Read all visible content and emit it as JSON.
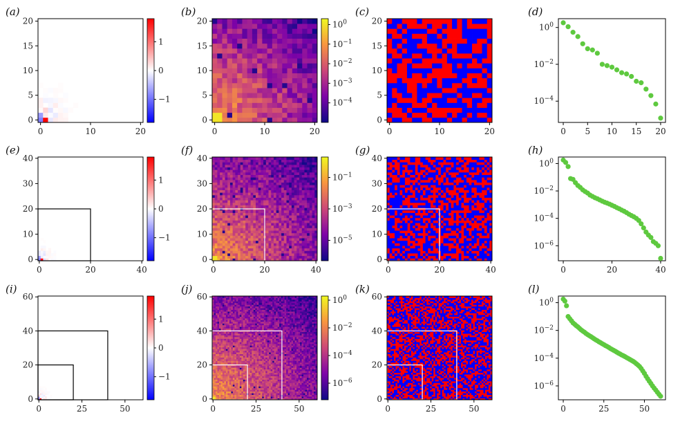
{
  "colors": {
    "matrix_bwr_neg": "#0000ff",
    "matrix_bwr_pos": "#ff0000",
    "sign_neg": "#0000ff",
    "sign_pos": "#ff0000",
    "spectrum_point": "#5ec93f",
    "plasma_low": "#0d0887",
    "plasma_high": "#f0f921"
  },
  "chart_data": [
    {
      "type": "heatmap",
      "panel": "(a)",
      "colormap": "bwr",
      "size": 21,
      "xlim": [
        0,
        21
      ],
      "ylim": [
        0,
        21
      ],
      "xticks": [
        0,
        10,
        20
      ],
      "yticks": [
        0,
        5,
        10,
        15,
        20
      ],
      "xtick_labels": [
        "0",
        "10",
        "20"
      ],
      "ytick_labels": [
        "0",
        "5",
        "10",
        "15",
        "20"
      ],
      "colorbar": {
        "range": [
          -1.8,
          1.8
        ],
        "ticks": [
          1,
          0,
          -1
        ],
        "labels": [
          "1",
          "0",
          "−1"
        ]
      },
      "outlines": []
    },
    {
      "type": "heatmap",
      "panel": "(b)",
      "colormap": "plasma",
      "scale": "log",
      "size": 21,
      "xlim": [
        0,
        21
      ],
      "ylim": [
        0,
        21
      ],
      "xticks": [
        0,
        10,
        20
      ],
      "yticks": [
        0,
        5,
        10,
        15,
        20
      ],
      "xtick_labels": [
        "0",
        "10",
        "20"
      ],
      "ytick_labels": [
        "0",
        "5",
        "10",
        "15",
        "20"
      ],
      "colorbar": {
        "range": [
          -5,
          0.3
        ],
        "ticks": [
          0,
          -1,
          -2,
          -3,
          -4
        ],
        "labels": [
          "10^0",
          "10^-1",
          "10^-2",
          "10^-3",
          "10^-4"
        ]
      },
      "outlines": []
    },
    {
      "type": "heatmap",
      "panel": "(c)",
      "colormap": "sign",
      "size": 21,
      "xlim": [
        0,
        21
      ],
      "ylim": [
        0,
        21
      ],
      "xticks": [
        0,
        10,
        20
      ],
      "yticks": [
        0,
        5,
        10,
        15,
        20
      ],
      "xtick_labels": [
        "0",
        "10",
        "20"
      ],
      "ytick_labels": [
        "0",
        "5",
        "10",
        "15",
        "20"
      ],
      "outlines": []
    },
    {
      "type": "scatter",
      "panel": "(d)",
      "yscale": "log",
      "x": [
        0,
        1,
        2,
        3,
        4,
        5,
        6,
        7,
        8,
        9,
        10,
        11,
        12,
        13,
        14,
        15,
        16,
        17,
        18,
        19,
        20
      ],
      "y": [
        1.8,
        1.1,
        0.55,
        0.32,
        0.13,
        0.07,
        0.06,
        0.04,
        0.01,
        0.0085,
        0.007,
        0.005,
        0.0035,
        0.003,
        0.0022,
        0.0012,
        0.001,
        0.00045,
        0.0002,
        7e-05,
        1.2e-05
      ],
      "xlim": [
        -1,
        21
      ],
      "ylim": [
        7e-06,
        3
      ],
      "xticks": [
        0,
        5,
        10,
        15,
        20
      ],
      "xtick_labels": [
        "0",
        "5",
        "10",
        "15",
        "20"
      ],
      "yticks": [
        0,
        -2,
        -4
      ],
      "ytick_labels": [
        "10^0",
        "10^-2",
        "10^-4"
      ]
    },
    {
      "type": "heatmap",
      "panel": "(e)",
      "colormap": "bwr",
      "size": 41,
      "xlim": [
        0,
        41
      ],
      "ylim": [
        0,
        41
      ],
      "xticks": [
        0,
        20,
        40
      ],
      "yticks": [
        0,
        10,
        20,
        30,
        40
      ],
      "xtick_labels": [
        "0",
        "20",
        "40"
      ],
      "ytick_labels": [
        "0",
        "10",
        "20",
        "30",
        "40"
      ],
      "colorbar": {
        "range": [
          -1.8,
          1.8
        ],
        "ticks": [
          1,
          0,
          -1
        ],
        "labels": [
          "1",
          "0",
          "−1"
        ]
      },
      "outlines": [
        20.5
      ]
    },
    {
      "type": "heatmap",
      "panel": "(f)",
      "colormap": "plasma",
      "scale": "log",
      "size": 41,
      "xlim": [
        0,
        41
      ],
      "ylim": [
        0,
        41
      ],
      "xticks": [
        0,
        20,
        40
      ],
      "yticks": [
        0,
        10,
        20,
        30,
        40
      ],
      "xtick_labels": [
        "0",
        "20",
        "40"
      ],
      "ytick_labels": [
        "0",
        "10",
        "20",
        "30",
        "40"
      ],
      "colorbar": {
        "range": [
          -6.3,
          0.3
        ],
        "ticks": [
          -1,
          -3,
          -5
        ],
        "labels": [
          "10^-1",
          "10^-3",
          "10^-5"
        ]
      },
      "outlines": [
        20.5
      ]
    },
    {
      "type": "heatmap",
      "panel": "(g)",
      "colormap": "sign",
      "size": 41,
      "xlim": [
        0,
        41
      ],
      "ylim": [
        0,
        41
      ],
      "xticks": [
        0,
        20,
        40
      ],
      "yticks": [
        0,
        10,
        20,
        30,
        40
      ],
      "xtick_labels": [
        "0",
        "20",
        "40"
      ],
      "ytick_labels": [
        "0",
        "10",
        "20",
        "30",
        "40"
      ],
      "outlines": [
        20.5
      ]
    },
    {
      "type": "scatter",
      "panel": "(h)",
      "yscale": "log",
      "x": [
        0,
        1,
        2,
        3,
        4,
        5,
        6,
        7,
        8,
        9,
        10,
        11,
        12,
        13,
        14,
        15,
        16,
        17,
        18,
        19,
        20,
        21,
        22,
        23,
        24,
        25,
        26,
        27,
        28,
        29,
        30,
        31,
        32,
        33,
        34,
        35,
        36,
        37,
        38,
        39,
        40
      ],
      "y": [
        1.8,
        1.2,
        0.6,
        0.08,
        0.07,
        0.04,
        0.025,
        0.018,
        0.012,
        0.009,
        0.007,
        0.005,
        0.004,
        0.0032,
        0.0027,
        0.0022,
        0.0018,
        0.0015,
        0.0013,
        0.0011,
        0.0009,
        0.00075,
        0.0006,
        0.0005,
        0.0004,
        0.00033,
        0.00026,
        0.0002,
        0.00016,
        0.00013,
        0.0001,
        7e-05,
        4e-05,
        2e-05,
        1e-05,
        6e-06,
        4e-06,
        2e-06,
        1.5e-06,
        1e-06,
        1.2e-07
      ],
      "xlim": [
        -2,
        42
      ],
      "ylim": [
        8e-08,
        3
      ],
      "xticks": [
        0,
        20,
        40
      ],
      "xtick_labels": [
        "0",
        "20",
        "40"
      ],
      "yticks": [
        0,
        -2,
        -4,
        -6
      ],
      "ytick_labels": [
        "10^0",
        "10^-2",
        "10^-4",
        "10^-6"
      ]
    },
    {
      "type": "heatmap",
      "panel": "(i)",
      "colormap": "bwr",
      "size": 61,
      "xlim": [
        0,
        61
      ],
      "ylim": [
        0,
        61
      ],
      "xticks": [
        0,
        25,
        50
      ],
      "yticks": [
        0,
        20,
        40,
        60
      ],
      "xtick_labels": [
        "0",
        "25",
        "50"
      ],
      "ytick_labels": [
        "0",
        "20",
        "40",
        "60"
      ],
      "colorbar": {
        "range": [
          -1.8,
          1.8
        ],
        "ticks": [
          1,
          0,
          -1
        ],
        "labels": [
          "1",
          "0",
          "−1"
        ]
      },
      "outlines": [
        20.5,
        40.5
      ]
    },
    {
      "type": "heatmap",
      "panel": "(j)",
      "colormap": "plasma",
      "scale": "log",
      "size": 61,
      "xlim": [
        0,
        61
      ],
      "ylim": [
        0,
        61
      ],
      "xticks": [
        0,
        25,
        50
      ],
      "yticks": [
        0,
        20,
        40,
        60
      ],
      "xtick_labels": [
        "0",
        "25",
        "50"
      ],
      "ytick_labels": [
        "0",
        "20",
        "40",
        "60"
      ],
      "colorbar": {
        "range": [
          -7.2,
          0.3
        ],
        "ticks": [
          0,
          -2,
          -4,
          -6
        ],
        "labels": [
          "10^0",
          "10^-2",
          "10^-4",
          "10^-6"
        ]
      },
      "outlines": [
        20.5,
        40.5
      ]
    },
    {
      "type": "heatmap",
      "panel": "(k)",
      "colormap": "sign",
      "size": 61,
      "xlim": [
        0,
        61
      ],
      "ylim": [
        0,
        61
      ],
      "xticks": [
        0,
        25,
        50
      ],
      "yticks": [
        0,
        20,
        40,
        60
      ],
      "xtick_labels": [
        "0",
        "25",
        "50"
      ],
      "ytick_labels": [
        "0",
        "20",
        "40",
        "60"
      ],
      "outlines": [
        20.5,
        40.5
      ]
    },
    {
      "type": "scatter",
      "panel": "(l)",
      "yscale": "log",
      "x": [
        0,
        1,
        2,
        3,
        4,
        5,
        6,
        7,
        8,
        9,
        10,
        11,
        12,
        13,
        14,
        15,
        16,
        17,
        18,
        19,
        20,
        21,
        22,
        23,
        24,
        25,
        26,
        27,
        28,
        29,
        30,
        31,
        32,
        33,
        34,
        35,
        36,
        37,
        38,
        39,
        40,
        41,
        42,
        43,
        44,
        45,
        46,
        47,
        48,
        49,
        50,
        51,
        52,
        53,
        54,
        55,
        56,
        57,
        58,
        59,
        60
      ],
      "y": [
        1.8,
        1.3,
        0.6,
        0.1,
        0.07,
        0.05,
        0.035,
        0.028,
        0.022,
        0.018,
        0.014,
        0.011,
        0.009,
        0.0075,
        0.006,
        0.005,
        0.0042,
        0.0036,
        0.003,
        0.0025,
        0.0021,
        0.0018,
        0.0015,
        0.0013,
        0.0011,
        0.00095,
        0.0008,
        0.0007,
        0.0006,
        0.0005,
        0.00043,
        0.00037,
        0.00032,
        0.00027,
        0.00023,
        0.0002,
        0.00017,
        0.00015,
        0.00013,
        0.00011,
        9.5e-05,
        8.2e-05,
        7e-05,
        6e-05,
        5e-05,
        4e-05,
        3.2e-05,
        2.5e-05,
        1.8e-05,
        1.2e-05,
        8e-06,
        5e-06,
        3.3e-06,
        2.2e-06,
        1.5e-06,
        1e-06,
        7e-07,
        5e-07,
        3.5e-07,
        2.5e-07,
        1.8e-07
      ],
      "xlim": [
        -3,
        63
      ],
      "ylim": [
        1e-07,
        3
      ],
      "xticks": [
        0,
        25,
        50
      ],
      "xtick_labels": [
        "0",
        "25",
        "50"
      ],
      "yticks": [
        0,
        -2,
        -4,
        -6
      ],
      "ytick_labels": [
        "10^0",
        "10^-2",
        "10^-4",
        "10^-6"
      ]
    }
  ]
}
